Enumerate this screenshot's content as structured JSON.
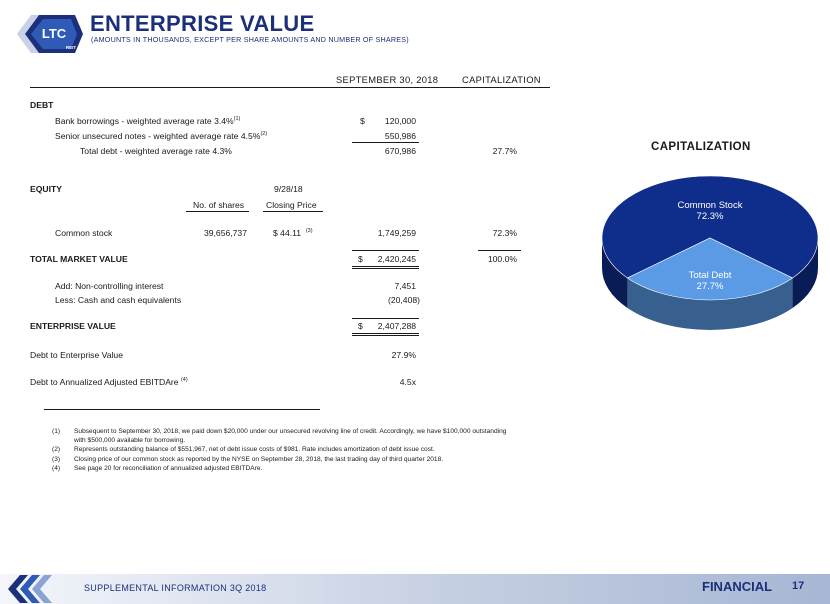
{
  "header": {
    "logo_text": "LTC",
    "logo_sub": "REIT",
    "title": "ENTERPRISE VALUE",
    "subtitle": "(AMOUNTS IN THOUSANDS, EXCEPT PER SHARE AMOUNTS AND NUMBER OF SHARES)"
  },
  "table": {
    "col_date": "SEPTEMBER 30, 2018",
    "col_cap": "CAPITALIZATION",
    "debt_label": "DEBT",
    "bank_label": "Bank borrowings - weighted average rate 3.4%",
    "bank_note": "(1)",
    "bank_dollar": "$",
    "bank_value": "120,000",
    "senior_label": "Senior unsecured notes - weighted average rate 4.5%",
    "senior_note": "(2)",
    "senior_value": "550,986",
    "total_debt_label": "Total debt - weighted average rate 4.3%",
    "total_debt_value": "670,986",
    "total_debt_cap": "27.7%",
    "equity_label": "EQUITY",
    "shares_header": "No. of shares",
    "date_header": "9/28/18",
    "closing_header": "Closing Price",
    "common_label": "Common stock",
    "common_shares": "39,656,737",
    "common_price": "$ 44.11",
    "common_note": "(3)",
    "common_value": "1,749,259",
    "common_cap": "72.3%",
    "tmv_label": "TOTAL MARKET VALUE",
    "tmv_dollar": "$",
    "tmv_value": "2,420,245",
    "tmv_cap": "100.0%",
    "nci_label": "Add:  Non-controlling interest",
    "nci_value": "7,451",
    "cash_label": "Less:  Cash and cash equivalents",
    "cash_value": "(20,408)",
    "ev_label": "ENTERPRISE VALUE",
    "ev_dollar": "$",
    "ev_value": "2,407,288",
    "debt_ev_label": "Debt to Enterprise Value",
    "debt_ev_value": "27.9%",
    "ebitda_label": "Debt to Annualized Adjusted EBITDAre",
    "ebitda_note": "(4)",
    "ebitda_value": "4.5x"
  },
  "footnotes": [
    {
      "num": "(1)",
      "text": "Subsequent to September 30, 2018, we paid down $20,000 under our unsecured revolving line of credit.  Accordingly, we have $100,000 outstanding"
    },
    {
      "num": "",
      "text": "with $500,000 available for borrowing."
    },
    {
      "num": "(2)",
      "text": "Represents outstanding balance of $551,967, net of debt issue costs of $981.  Rate includes amortization of debt issue cost."
    },
    {
      "num": "(3)",
      "text": "Closing price of our common stock as reported by the NYSE on September 28, 2018, the last trading day of third quarter 2018."
    },
    {
      "num": "(4)",
      "text": "See page 20 for reconciliation of annualized adjusted EBITDAre."
    }
  ],
  "chart_data": {
    "type": "pie",
    "title": "CAPITALIZATION",
    "categories": [
      "Common Stock",
      "Total Debt"
    ],
    "values": [
      72.3,
      27.7
    ],
    "labels": [
      "72.3%",
      "27.7%"
    ],
    "colors": [
      "#0f2d8a",
      "#5b9be6"
    ]
  },
  "footer": {
    "text": "SUPPLEMENTAL INFORMATION  3Q 2018",
    "section": "FINANCIAL",
    "page": "17"
  }
}
